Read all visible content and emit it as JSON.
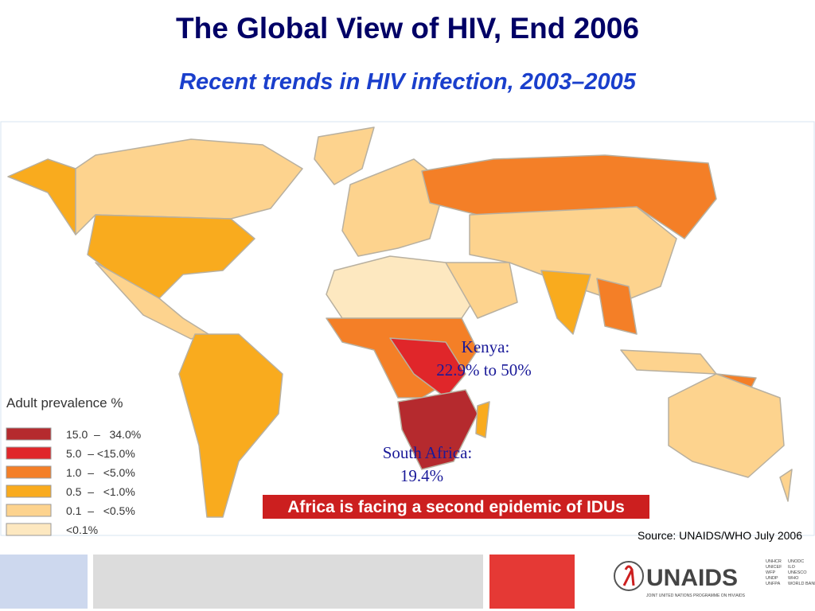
{
  "header": {
    "title": "The Global View of HIV, End 2006",
    "subtitle": "Recent trends in HIV infection, 2003–2005"
  },
  "legend": {
    "title": "Adult prevalence %",
    "items": [
      {
        "label": "15.0  –   34.0%",
        "color": "#b52a2e"
      },
      {
        "label": "5.0  – <15.0%",
        "color": "#e0262a"
      },
      {
        "label": "1.0  –   <5.0%",
        "color": "#f47f27"
      },
      {
        "label": "0.5  –   <1.0%",
        "color": "#f9ab1e"
      },
      {
        "label": "0.1  –   <0.5%",
        "color": "#fdd38e"
      },
      {
        "label": "<0.1%",
        "color": "#fde8c0"
      }
    ]
  },
  "annotations": {
    "kenya": [
      "Kenya:",
      "22.9% to 50%"
    ],
    "south_africa": [
      "South Africa:",
      "19.4%"
    ]
  },
  "banner": "Africa is facing a second epidemic of IDUs",
  "source": "Source: UNAIDS/WHO July 2006",
  "logo": {
    "name": "UNAIDS",
    "tagline": "JOINT UNITED NATIONS PROGRAMME ON HIV/AIDS",
    "cosponsors": [
      [
        "UNHCR",
        "UNICEF",
        "WFP",
        "UNDP",
        "UNFPA"
      ],
      [
        "UNODC",
        "ILO",
        "UNESCO",
        "WHO",
        "WORLD BANK"
      ]
    ]
  }
}
